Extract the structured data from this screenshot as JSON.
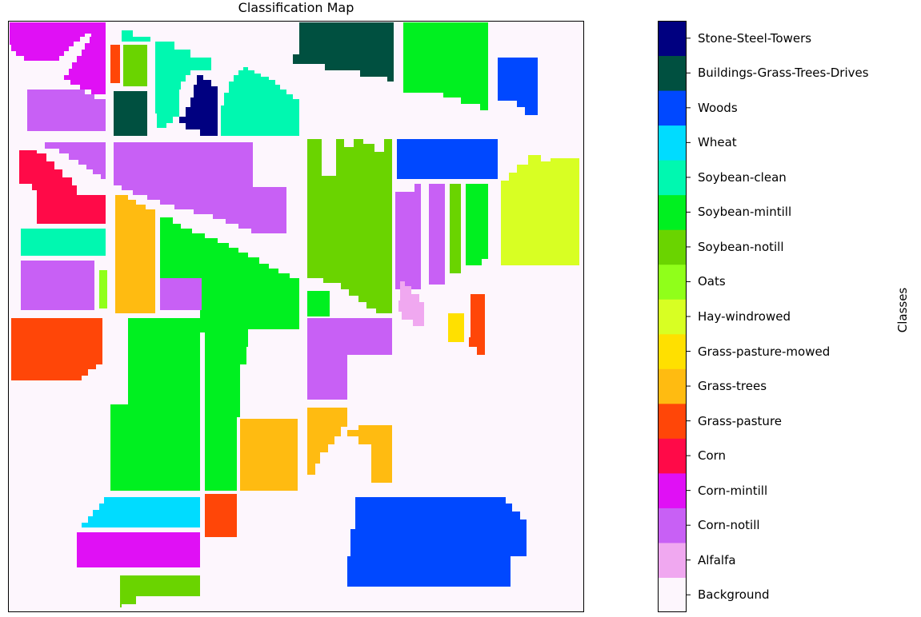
{
  "chart_data": {
    "type": "heatmap",
    "title": "Classification Map",
    "colorbar_label": "Classes",
    "legend_placement": "right colorbar",
    "grid": false,
    "classes": [
      {
        "name": "Background",
        "color": "#fdf6fd"
      },
      {
        "name": "Alfalfa",
        "color": "#f0a8f0"
      },
      {
        "name": "Corn-notill",
        "color": "#c860f5"
      },
      {
        "name": "Corn-mintill",
        "color": "#e010f5"
      },
      {
        "name": "Corn",
        "color": "#ff0a48"
      },
      {
        "name": "Grass-pasture",
        "color": "#ff4608"
      },
      {
        "name": "Grass-trees",
        "color": "#ffbb11"
      },
      {
        "name": "Grass-pasture-mowed",
        "color": "#ffe000"
      },
      {
        "name": "Hay-windrowed",
        "color": "#d8ff23"
      },
      {
        "name": "Oats",
        "color": "#90ff1a"
      },
      {
        "name": "Soybean-notill",
        "color": "#6ad400"
      },
      {
        "name": "Soybean-mintill",
        "color": "#00f020"
      },
      {
        "name": "Soybean-clean",
        "color": "#00f8b0"
      },
      {
        "name": "Wheat",
        "color": "#00dcff"
      },
      {
        "name": "Woods",
        "color": "#0048ff"
      },
      {
        "name": "Buildings-Grass-Trees-Drives",
        "color": "#005040"
      },
      {
        "name": "Stone-Steel-Towers",
        "color": "#000080"
      }
    ]
  }
}
